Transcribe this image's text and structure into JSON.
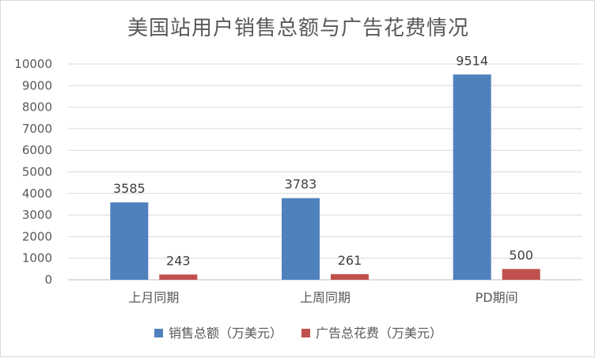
{
  "chart_data": {
    "type": "bar",
    "title": "美国站用户销售总额与广告花费情况",
    "categories": [
      "上月同期",
      "上周同期",
      "PD期间"
    ],
    "series": [
      {
        "name": "销售总额（万美元）",
        "values": [
          3585,
          3783,
          9514
        ],
        "color": "#4f81bd"
      },
      {
        "name": "广告总花费（万美元）",
        "values": [
          243,
          261,
          500
        ],
        "color": "#c0504d"
      }
    ],
    "ylim": [
      0,
      10000
    ],
    "yticks": [
      0,
      1000,
      2000,
      3000,
      4000,
      5000,
      6000,
      7000,
      8000,
      9000,
      10000
    ],
    "grid": true,
    "legend": "bottom"
  }
}
